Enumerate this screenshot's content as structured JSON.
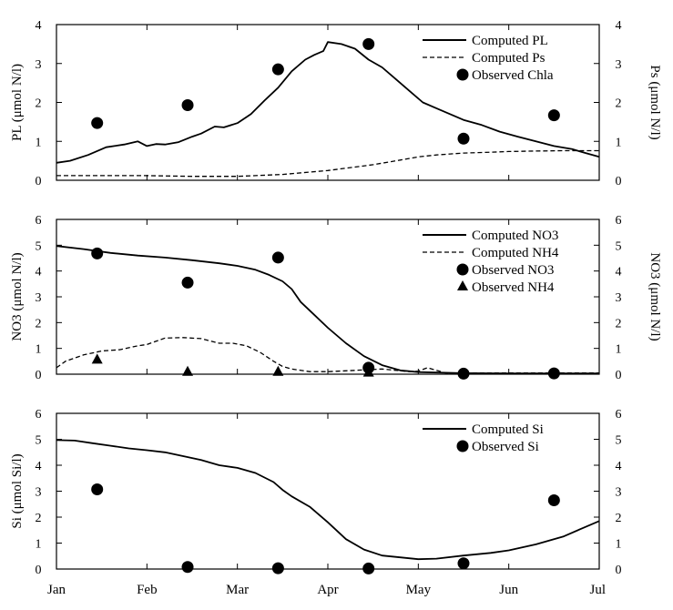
{
  "chart_data": [
    {
      "type": "line",
      "ylabel": "PL (μmol N/l)",
      "ylabel_right": "Ps (μmol N/l)",
      "ylim": [
        0,
        4
      ],
      "yticks": [
        0,
        1,
        2,
        3,
        4
      ],
      "xlim": [
        0,
        6
      ],
      "legend_position": "top-right",
      "grid": false,
      "series": [
        {
          "name": "Computed PL",
          "kind": "line",
          "style": "solid",
          "x": [
            0,
            0.15,
            0.35,
            0.55,
            0.75,
            0.9,
            1.0,
            1.1,
            1.2,
            1.35,
            1.5,
            1.6,
            1.75,
            1.85,
            2.0,
            2.15,
            2.3,
            2.45,
            2.6,
            2.75,
            2.85,
            2.95,
            3.0,
            3.15,
            3.3,
            3.45,
            3.6,
            3.75,
            3.9,
            4.05,
            4.2,
            4.35,
            4.5,
            4.7,
            4.9,
            5.1,
            5.3,
            5.5,
            5.7,
            5.85,
            6.0
          ],
          "y": [
            0.45,
            0.5,
            0.65,
            0.85,
            0.92,
            1.0,
            0.88,
            0.93,
            0.92,
            0.98,
            1.12,
            1.2,
            1.38,
            1.36,
            1.47,
            1.7,
            2.05,
            2.38,
            2.8,
            3.1,
            3.22,
            3.32,
            3.55,
            3.5,
            3.38,
            3.1,
            2.9,
            2.6,
            2.3,
            2.0,
            1.85,
            1.7,
            1.55,
            1.42,
            1.25,
            1.12,
            1.0,
            0.88,
            0.8,
            0.7,
            0.6
          ]
        },
        {
          "name": "Computed Ps",
          "kind": "line",
          "style": "dashed",
          "axis": "right",
          "x": [
            0,
            0.5,
            1.0,
            1.5,
            2.0,
            2.5,
            3.0,
            3.5,
            3.8,
            4.0,
            4.2,
            4.5,
            4.8,
            5.0,
            5.3,
            5.6,
            6.0
          ],
          "y": [
            0.12,
            0.12,
            0.12,
            0.1,
            0.1,
            0.15,
            0.25,
            0.4,
            0.52,
            0.6,
            0.65,
            0.7,
            0.72,
            0.74,
            0.75,
            0.76,
            0.76
          ]
        },
        {
          "name": "Observed Chla",
          "kind": "scatter",
          "marker": "circle",
          "x": [
            0.45,
            1.45,
            2.45,
            3.45,
            4.5,
            5.5
          ],
          "y": [
            1.47,
            1.93,
            2.85,
            3.5,
            1.07,
            1.67
          ]
        }
      ]
    },
    {
      "type": "line",
      "ylabel": "NO3 (μmol N/l)",
      "ylabel_right": "NO3 (μmol N/l)",
      "ylim": [
        0,
        6
      ],
      "yticks": [
        0,
        1,
        2,
        3,
        4,
        5,
        6
      ],
      "xlim": [
        0,
        6
      ],
      "legend_position": "right",
      "grid": false,
      "series": [
        {
          "name": "Computed NO3",
          "kind": "line",
          "style": "solid",
          "x": [
            0,
            0.3,
            0.6,
            0.9,
            1.2,
            1.5,
            1.8,
            2.0,
            2.2,
            2.35,
            2.5,
            2.6,
            2.7,
            2.85,
            3.0,
            3.2,
            3.4,
            3.6,
            3.8,
            4.0,
            4.5,
            5.0,
            6.0
          ],
          "y": [
            4.97,
            4.85,
            4.7,
            4.6,
            4.52,
            4.42,
            4.3,
            4.2,
            4.05,
            3.85,
            3.6,
            3.3,
            2.8,
            2.3,
            1.8,
            1.2,
            0.7,
            0.35,
            0.15,
            0.08,
            0.04,
            0.03,
            0.03
          ]
        },
        {
          "name": "Computed NH4",
          "kind": "line",
          "style": "dashed",
          "x": [
            0,
            0.1,
            0.3,
            0.5,
            0.7,
            0.9,
            1.0,
            1.2,
            1.4,
            1.6,
            1.8,
            1.95,
            2.1,
            2.25,
            2.4,
            2.5,
            2.6,
            2.8,
            3.0,
            3.3,
            3.6,
            3.9,
            4.0,
            4.1,
            4.3,
            4.6,
            5.0,
            5.2,
            5.5,
            6.0
          ],
          "y": [
            0.25,
            0.5,
            0.75,
            0.9,
            0.95,
            1.1,
            1.15,
            1.4,
            1.42,
            1.38,
            1.2,
            1.2,
            1.1,
            0.85,
            0.5,
            0.3,
            0.2,
            0.1,
            0.1,
            0.15,
            0.2,
            0.1,
            0.12,
            0.25,
            0.05,
            0.05,
            0.05,
            0.05,
            0.05,
            0.05
          ]
        },
        {
          "name": "Observed NO3",
          "kind": "scatter",
          "marker": "circle",
          "x": [
            0.45,
            1.45,
            2.45,
            3.45,
            4.5,
            5.5
          ],
          "y": [
            4.68,
            3.55,
            4.52,
            0.25,
            0.02,
            0.03
          ]
        },
        {
          "name": "Observed NH4",
          "kind": "scatter",
          "marker": "triangle",
          "x": [
            0.45,
            1.45,
            2.45,
            3.45
          ],
          "y": [
            0.55,
            0.08,
            0.08,
            0.05
          ]
        }
      ]
    },
    {
      "type": "line",
      "ylabel": "Si (μmol Si/l)",
      "ylim": [
        0,
        6
      ],
      "yticks": [
        0,
        1,
        2,
        3,
        4,
        5,
        6
      ],
      "xlim": [
        0,
        6
      ],
      "xtick_labels": [
        "Jan",
        "Feb",
        "Mar",
        "Apr",
        "May",
        "Jun",
        "Jul"
      ],
      "legend_position": "top-right",
      "grid": false,
      "series": [
        {
          "name": "Computed Si",
          "kind": "line",
          "style": "solid",
          "x": [
            0,
            0.2,
            0.4,
            0.6,
            0.8,
            1.0,
            1.2,
            1.4,
            1.6,
            1.8,
            2.0,
            2.2,
            2.4,
            2.5,
            2.6,
            2.8,
            3.0,
            3.2,
            3.4,
            3.6,
            3.8,
            4.0,
            4.2,
            4.5,
            4.8,
            5.0,
            5.3,
            5.6,
            5.8,
            6.0
          ],
          "y": [
            4.97,
            4.95,
            4.85,
            4.75,
            4.65,
            4.58,
            4.5,
            4.35,
            4.2,
            4.0,
            3.9,
            3.7,
            3.35,
            3.05,
            2.8,
            2.4,
            1.8,
            1.15,
            0.75,
            0.52,
            0.45,
            0.38,
            0.4,
            0.52,
            0.62,
            0.72,
            0.95,
            1.25,
            1.55,
            1.85
          ]
        },
        {
          "name": "Observed Si",
          "kind": "scatter",
          "marker": "circle",
          "x": [
            0.45,
            1.45,
            2.45,
            3.45,
            4.5,
            5.5
          ],
          "y": [
            3.07,
            0.08,
            0.03,
            0.02,
            0.22,
            2.65
          ]
        }
      ]
    }
  ]
}
